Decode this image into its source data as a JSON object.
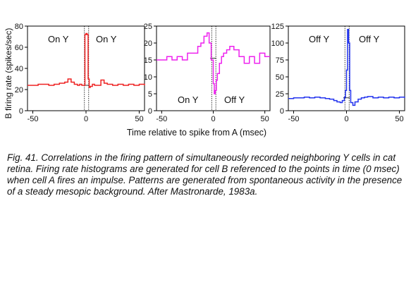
{
  "figure": {
    "ylabel": "B firing rate (spikes/sec)",
    "xlabel": "Time relative to spike from A (msec)",
    "caption": "Fig. 41. Correlations in the firing pattern of simultaneously recorded neighboring Y cells in cat retina. Firing rate histograms are generated for cell B referenced to the points in time (0 msec) when cell A fires an impulse. Patterns are generated from spontaneous activity in the presence of a steady mesopic background. After Mastronarde, 1983a."
  },
  "chart_data": [
    {
      "type": "line",
      "color": "#ee2222",
      "xlim": [
        -55,
        55
      ],
      "ylim": [
        0,
        80
      ],
      "xticks": [
        -50,
        0,
        50
      ],
      "yticks": [
        0,
        20,
        40,
        60,
        80
      ],
      "annotations": [
        "On Y",
        "On Y"
      ],
      "baseline": 24,
      "x": [
        -55,
        -50,
        -45,
        -40,
        -35,
        -30,
        -25,
        -20,
        -17,
        -14,
        -11,
        -8,
        -6,
        -4,
        -2,
        -1,
        0,
        1,
        2,
        3,
        4,
        6,
        8,
        11,
        14,
        17,
        20,
        25,
        30,
        35,
        40,
        45,
        50,
        55
      ],
      "values": [
        24,
        24,
        25,
        25,
        24,
        25,
        26,
        27,
        30,
        27,
        25,
        24,
        25,
        24,
        24,
        72,
        73,
        72,
        30,
        22,
        23,
        25,
        24,
        24,
        29,
        26,
        25,
        24,
        25,
        24,
        25,
        24,
        25,
        24
      ]
    },
    {
      "type": "line",
      "color": "#ee22ee",
      "xlim": [
        -55,
        55
      ],
      "ylim": [
        0,
        25
      ],
      "xticks": [
        -50,
        0,
        50
      ],
      "yticks": [
        0,
        5,
        10,
        15,
        20,
        25
      ],
      "annotations": [
        "On Y",
        "Off Y"
      ],
      "baseline": 15.5,
      "x": [
        -55,
        -50,
        -45,
        -40,
        -35,
        -30,
        -25,
        -20,
        -15,
        -12,
        -9,
        -6,
        -4,
        -2,
        0,
        1,
        2,
        3,
        4,
        6,
        8,
        10,
        13,
        16,
        20,
        25,
        30,
        35,
        40,
        45,
        50,
        55
      ],
      "values": [
        15,
        15,
        16,
        15,
        16,
        15,
        17,
        17,
        19,
        20,
        22,
        23,
        20,
        15,
        8,
        5,
        6,
        9,
        11,
        14,
        16,
        17,
        18,
        19,
        18,
        16,
        14,
        16,
        14,
        17,
        16,
        16
      ]
    },
    {
      "type": "line",
      "color": "#2233ee",
      "xlim": [
        -55,
        55
      ],
      "ylim": [
        0,
        125
      ],
      "xticks": [
        -50,
        0,
        50
      ],
      "yticks": [
        0,
        25,
        50,
        75,
        100,
        125
      ],
      "annotations": [
        "Off Y",
        "Off Y"
      ],
      "baseline": 19,
      "x": [
        -55,
        -50,
        -45,
        -40,
        -35,
        -30,
        -25,
        -20,
        -16,
        -12,
        -9,
        -6,
        -4,
        -2,
        -1,
        0,
        1,
        2,
        3,
        4,
        6,
        8,
        11,
        14,
        17,
        20,
        25,
        30,
        35,
        40,
        45,
        50,
        55
      ],
      "values": [
        18,
        19,
        19,
        20,
        19,
        20,
        19,
        18,
        17,
        15,
        13,
        12,
        15,
        20,
        30,
        60,
        120,
        100,
        30,
        12,
        8,
        13,
        17,
        19,
        20,
        21,
        19,
        20,
        19,
        20,
        19,
        20,
        19
      ]
    }
  ]
}
